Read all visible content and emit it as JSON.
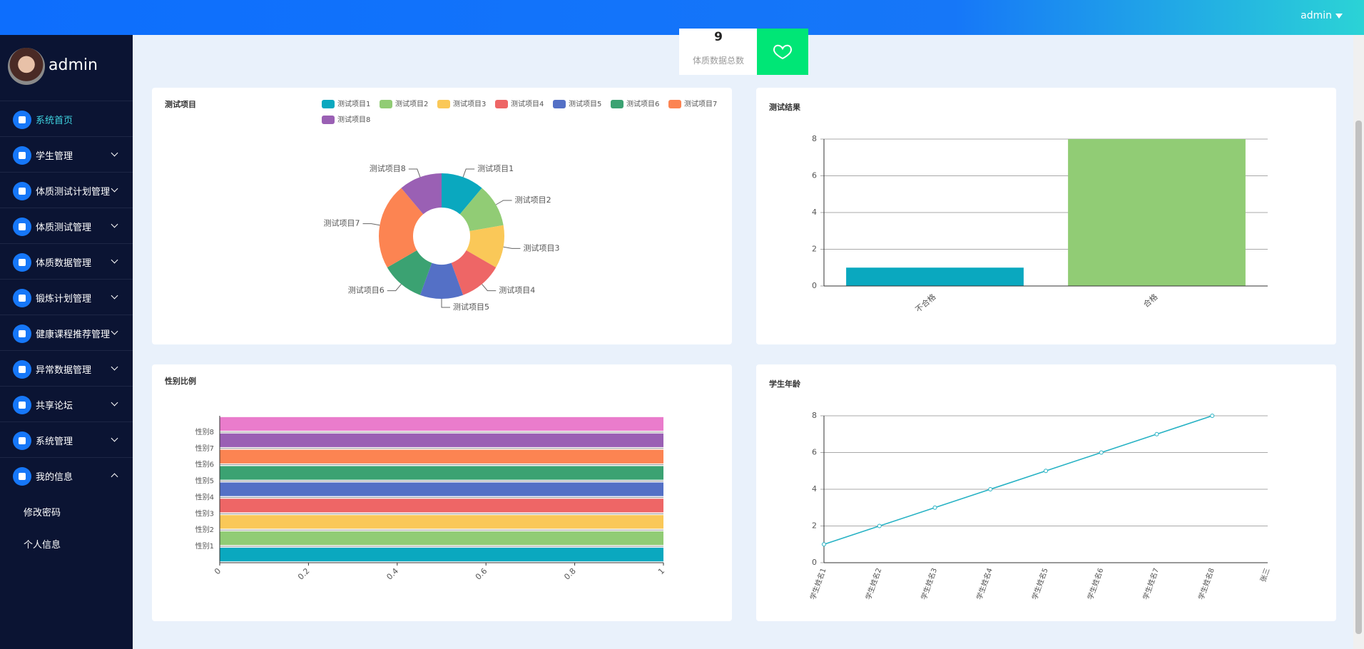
{
  "header": {
    "user": "admin"
  },
  "sidebar": {
    "username": "admin",
    "menu": [
      {
        "label": "系统首页"
      },
      {
        "label": "学生管理"
      },
      {
        "label": "体质测试计划管理"
      },
      {
        "label": "体质测试管理"
      },
      {
        "label": "体质数据管理"
      },
      {
        "label": "锻炼计划管理"
      },
      {
        "label": "健康课程推荐管理"
      },
      {
        "label": "异常数据管理"
      },
      {
        "label": "共享论坛"
      },
      {
        "label": "系统管理"
      },
      {
        "label": "我的信息"
      }
    ],
    "submenu": [
      "修改密码",
      "个人信息"
    ]
  },
  "stat": {
    "value": "9",
    "label": "体质数据总数"
  },
  "chart_data": [
    {
      "type": "pie",
      "title": "测试项目",
      "categories": [
        "测试项目1",
        "测试项目2",
        "测试项目3",
        "测试项目4",
        "测试项目5",
        "测试项目6",
        "测试项目7",
        "测试项目8"
      ],
      "values": [
        1,
        1,
        1,
        1,
        1,
        1,
        2,
        1
      ],
      "colors": [
        "#0aa8bf",
        "#91cc75",
        "#fac858",
        "#ee6666",
        "#5470c6",
        "#3ba272",
        "#fc8452",
        "#9a60b4"
      ],
      "legend": "top"
    },
    {
      "type": "bar",
      "title": "测试结果",
      "categories": [
        "不合格",
        "合格"
      ],
      "values": [
        1,
        8
      ],
      "colors": [
        "#0aa8bf",
        "#91cc75"
      ],
      "ylim": [
        0,
        8
      ],
      "yticks": [
        0,
        2,
        4,
        6,
        8
      ],
      "grid": true
    },
    {
      "type": "hbar",
      "title": "性别比例",
      "categories": [
        null,
        "性别1",
        "性别2",
        "性别3",
        "性别4",
        "性别5",
        "性别6",
        "性别7",
        "性别8"
      ],
      "values": [
        1,
        1,
        1,
        1,
        1,
        1,
        1,
        1,
        1
      ],
      "colors": [
        "#0aa8bf",
        "#91cc75",
        "#fac858",
        "#ee6666",
        "#5470c6",
        "#3ba272",
        "#fc8452",
        "#9a60b4",
        "#ea7ccc"
      ],
      "xlim": [
        0,
        1
      ],
      "xticks": [
        0,
        0.2,
        0.4,
        0.6,
        0.8,
        1
      ]
    },
    {
      "type": "line",
      "title": "学生年龄",
      "categories": [
        "学生姓名1",
        "学生姓名2",
        "学生姓名3",
        "学生姓名4",
        "学生姓名5",
        "学生姓名6",
        "学生姓名7",
        "学生姓名8",
        "张三"
      ],
      "values": [
        1,
        2,
        3,
        4,
        5,
        6,
        7,
        8,
        null
      ],
      "color": "#27b2c4",
      "ylim": [
        0,
        8
      ],
      "yticks": [
        0,
        2,
        4,
        6,
        8
      ],
      "grid": true
    }
  ]
}
